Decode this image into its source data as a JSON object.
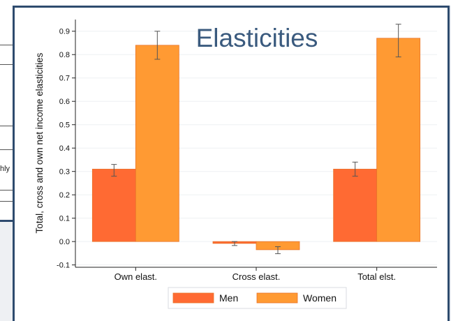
{
  "background": {
    "partial_text": "hly"
  },
  "title": "Elasticities",
  "chart_data": {
    "type": "bar",
    "categories": [
      "Own elast.",
      "Cross elast.",
      "Total elst."
    ],
    "series": [
      {
        "name": "Men",
        "color": "#ff6a33",
        "values": [
          0.31,
          -0.008,
          0.31
        ],
        "error_low": [
          0.28,
          -0.017,
          0.28
        ],
        "error_high": [
          0.33,
          0.0,
          0.34
        ]
      },
      {
        "name": "Women",
        "color": "#ff9a33",
        "values": [
          0.84,
          -0.035,
          0.87
        ],
        "error_low": [
          0.78,
          -0.052,
          0.79
        ],
        "error_high": [
          0.9,
          -0.022,
          0.93
        ]
      }
    ],
    "ylabel": "Total, cross and own net income elasticities",
    "xlabel": "",
    "ylim": [
      -0.11,
      0.95
    ],
    "yticks": [
      -0.1,
      0.0,
      0.1,
      0.2,
      0.3,
      0.4,
      0.5,
      0.6,
      0.7,
      0.8,
      0.9
    ],
    "ytick_labels": [
      "-0.1",
      "0.0",
      "0.1",
      "0.2",
      "0.3",
      "0.4",
      "0.5",
      "0.6",
      "0.7",
      "0.8",
      "0.9"
    ],
    "grid": true,
    "legend_position": "bottom",
    "legend": [
      "Men",
      "Women"
    ]
  }
}
